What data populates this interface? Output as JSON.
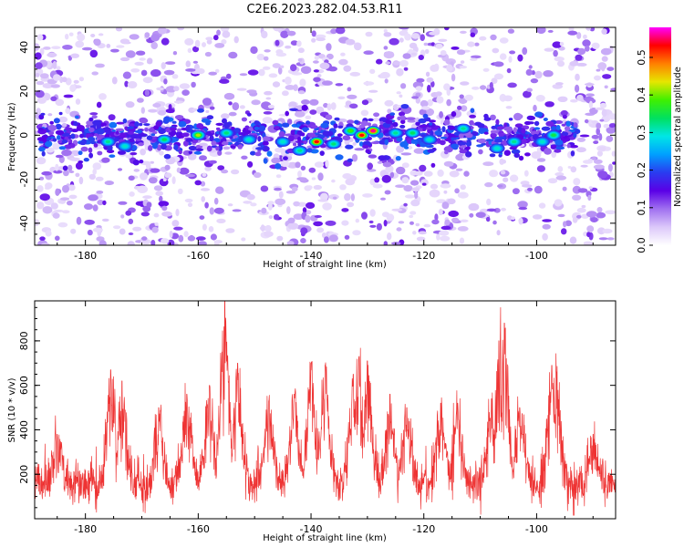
{
  "title": "C2E6.2023.282.04.53.R11",
  "chart_data": [
    {
      "type": "heatmap",
      "title": "C2E6.2023.282.04.53.R11",
      "xlabel": "Height of straight line (km)",
      "ylabel": "Frequency (Hz)",
      "xlim": [
        -189,
        -86
      ],
      "ylim": [
        -50,
        49
      ],
      "x_ticks": [
        -180,
        -160,
        -140,
        -120,
        -100
      ],
      "y_ticks": [
        -40,
        -20,
        0,
        20,
        40
      ],
      "colorbar": {
        "label": "Normalized spectral amplitude",
        "range": [
          0.0,
          0.58
        ],
        "ticks": [
          0.0,
          0.1,
          0.2,
          0.3,
          0.4,
          0.5
        ],
        "colormap": [
          "#ffffff",
          "#dcc8fa",
          "#a070f0",
          "#5a00e6",
          "#2a3cf0",
          "#00a0ff",
          "#00e6e6",
          "#00e060",
          "#40f000",
          "#e6e600",
          "#ff8000",
          "#ff0000",
          "#ff00ff"
        ]
      },
      "band": {
        "center_hz": 0,
        "halfwidth_hz": 6,
        "x_extent": [
          -188,
          -93
        ]
      },
      "hot_spots": [
        {
          "x": -176,
          "y": -3,
          "value": 0.32
        },
        {
          "x": -173,
          "y": -5,
          "value": 0.3
        },
        {
          "x": -166,
          "y": -2,
          "value": 0.34
        },
        {
          "x": -160,
          "y": 0,
          "value": 0.42
        },
        {
          "x": -155,
          "y": 1,
          "value": 0.33
        },
        {
          "x": -151,
          "y": -2,
          "value": 0.3
        },
        {
          "x": -145,
          "y": -3,
          "value": 0.3
        },
        {
          "x": -142,
          "y": -7,
          "value": 0.32
        },
        {
          "x": -139,
          "y": -3,
          "value": 0.53
        },
        {
          "x": -136,
          "y": -4,
          "value": 0.33
        },
        {
          "x": -133,
          "y": 2,
          "value": 0.38
        },
        {
          "x": -131,
          "y": 0,
          "value": 0.53
        },
        {
          "x": -129,
          "y": 2,
          "value": 0.56
        },
        {
          "x": -125,
          "y": 1,
          "value": 0.32
        },
        {
          "x": -122,
          "y": 1,
          "value": 0.34
        },
        {
          "x": -119,
          "y": -2,
          "value": 0.3
        },
        {
          "x": -113,
          "y": 3,
          "value": 0.32
        },
        {
          "x": -107,
          "y": -6,
          "value": 0.3
        },
        {
          "x": -104,
          "y": -3,
          "value": 0.32
        },
        {
          "x": -99,
          "y": -3,
          "value": 0.3
        },
        {
          "x": -97,
          "y": 0,
          "value": 0.35
        }
      ],
      "noise_density_columns": [
        {
          "x_range": [
            -189,
            -181
          ],
          "density": "high"
        },
        {
          "x_range": [
            -181,
            -170
          ],
          "density": "medium"
        },
        {
          "x_range": [
            -170,
            -158
          ],
          "density": "high"
        },
        {
          "x_range": [
            -158,
            -148
          ],
          "density": "medium"
        },
        {
          "x_range": [
            -148,
            -136
          ],
          "density": "high"
        },
        {
          "x_range": [
            -136,
            -127
          ],
          "density": "medium"
        },
        {
          "x_range": [
            -127,
            -112
          ],
          "density": "high"
        },
        {
          "x_range": [
            -112,
            -94
          ],
          "density": "medium"
        },
        {
          "x_range": [
            -94,
            -86
          ],
          "density": "high"
        }
      ]
    },
    {
      "type": "line",
      "xlabel": "Height of straight line (km)",
      "ylabel": "SNR (10 * v/v)",
      "xlim": [
        -189,
        -86
      ],
      "ylim": [
        0,
        980
      ],
      "x_ticks": [
        -180,
        -160,
        -140,
        -120,
        -100
      ],
      "y_ticks": [
        200,
        400,
        600,
        800
      ],
      "color": "#ee3333",
      "baseline_mean": 155,
      "baseline_spread": 140,
      "peaks": [
        {
          "x": -185,
          "value": 380
        },
        {
          "x": -175.5,
          "value": 670
        },
        {
          "x": -173.5,
          "value": 620
        },
        {
          "x": -167,
          "value": 500
        },
        {
          "x": -162,
          "value": 560
        },
        {
          "x": -158,
          "value": 600
        },
        {
          "x": -155.3,
          "value": 980
        },
        {
          "x": -153,
          "value": 700
        },
        {
          "x": -147.5,
          "value": 530
        },
        {
          "x": -143,
          "value": 560
        },
        {
          "x": -140,
          "value": 700
        },
        {
          "x": -137.5,
          "value": 690
        },
        {
          "x": -132.5,
          "value": 650
        },
        {
          "x": -131.5,
          "value": 730
        },
        {
          "x": -130,
          "value": 710
        },
        {
          "x": -126,
          "value": 560
        },
        {
          "x": -123,
          "value": 500
        },
        {
          "x": -117,
          "value": 520
        },
        {
          "x": -114,
          "value": 520
        },
        {
          "x": -108,
          "value": 540
        },
        {
          "x": -106.5,
          "value": 800
        },
        {
          "x": -105.7,
          "value": 880
        },
        {
          "x": -103,
          "value": 500
        },
        {
          "x": -97.3,
          "value": 690
        },
        {
          "x": -96.5,
          "value": 660
        },
        {
          "x": -90,
          "value": 380
        }
      ]
    }
  ]
}
